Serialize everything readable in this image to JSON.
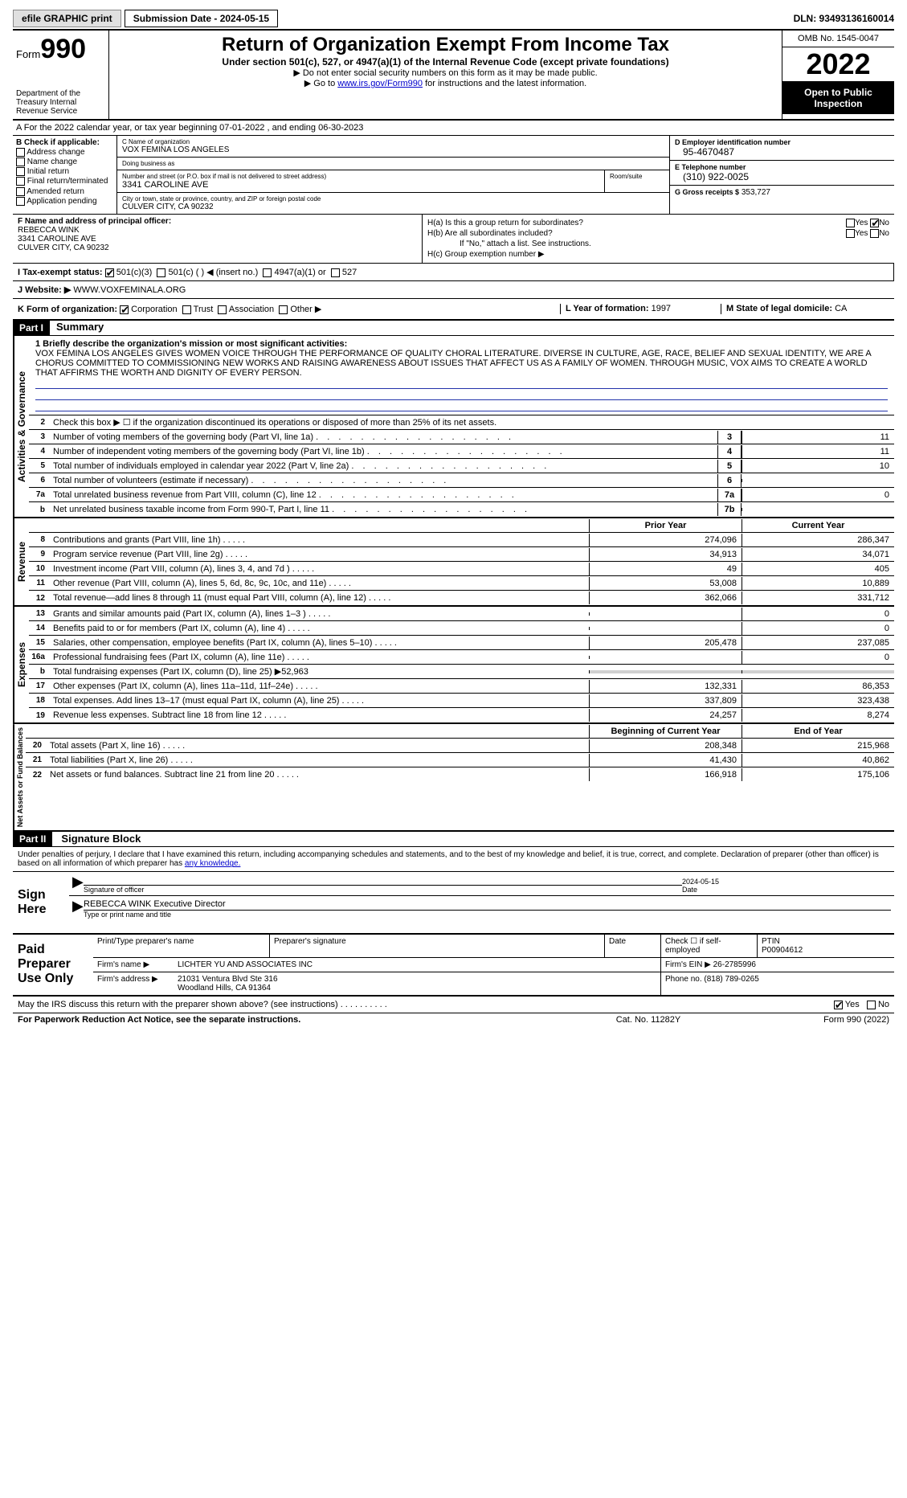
{
  "topbar": {
    "efile": "efile GRAPHIC print",
    "submission": "Submission Date - 2024-05-15",
    "dln": "DLN: 93493136160014"
  },
  "header": {
    "form_word": "Form",
    "form_num": "990",
    "dept": "Department of the Treasury Internal Revenue Service",
    "title": "Return of Organization Exempt From Income Tax",
    "sub1": "Under section 501(c), 527, or 4947(a)(1) of the Internal Revenue Code (except private foundations)",
    "sub2": "▶ Do not enter social security numbers on this form as it may be made public.",
    "sub3a": "▶ Go to ",
    "sub3_link": "www.irs.gov/Form990",
    "sub3b": " for instructions and the latest information.",
    "omb": "OMB No. 1545-0047",
    "year": "2022",
    "open": "Open to Public Inspection"
  },
  "row_a": "A For the 2022 calendar year, or tax year beginning 07-01-2022   , and ending 06-30-2023",
  "col_b": {
    "label": "B Check if applicable:",
    "items": [
      "Address change",
      "Name change",
      "Initial return",
      "Final return/terminated",
      "Amended return",
      "Application pending"
    ]
  },
  "col_c": {
    "name_label": "C Name of organization",
    "name": "VOX FEMINA LOS ANGELES",
    "dba_label": "Doing business as",
    "dba": "",
    "addr_label": "Number and street (or P.O. box if mail is not delivered to street address)",
    "addr": "3341 CAROLINE AVE",
    "room_label": "Room/suite",
    "city_label": "City or town, state or province, country, and ZIP or foreign postal code",
    "city": "CULVER CITY, CA  90232"
  },
  "col_d": {
    "ein_label": "D Employer identification number",
    "ein": "95-4670487",
    "tel_label": "E Telephone number",
    "tel": "(310) 922-0025",
    "gross_label": "G Gross receipts $",
    "gross": "353,727"
  },
  "col_f": {
    "label": "F Name and address of principal officer:",
    "name": "REBECCA WINK",
    "addr1": "3341 CAROLINE AVE",
    "addr2": "CULVER CITY, CA  90232"
  },
  "col_h": {
    "ha": "H(a)  Is this a group return for subordinates?",
    "hb": "H(b)  Are all subordinates included?",
    "hb_note": "If \"No,\" attach a list. See instructions.",
    "hc": "H(c)  Group exemption number ▶"
  },
  "row_i": {
    "label": "I  Tax-exempt status:",
    "opts": [
      "501(c)(3)",
      "501(c) (  ) ◀ (insert no.)",
      "4947(a)(1) or",
      "527"
    ]
  },
  "row_j": {
    "label": "J  Website: ▶",
    "val": " WWW.VOXFEMINALA.ORG"
  },
  "row_k": {
    "label": "K Form of organization:",
    "opts": [
      "Corporation",
      "Trust",
      "Association",
      "Other ▶"
    ],
    "year_label": "L Year of formation:",
    "year": "1997",
    "state_label": "M State of legal domicile:",
    "state": "CA"
  },
  "part1": {
    "hdr": "Part I",
    "title": "Summary",
    "side_ag": "Activities & Governance",
    "side_rev": "Revenue",
    "side_exp": "Expenses",
    "side_net": "Net Assets or Fund Balances",
    "l1_label": "1 Briefly describe the organization's mission or most significant activities:",
    "mission": "VOX FEMINA LOS ANGELES GIVES WOMEN VOICE THROUGH THE PERFORMANCE OF QUALITY CHORAL LITERATURE. DIVERSE IN CULTURE, AGE, RACE, BELIEF AND SEXUAL IDENTITY, WE ARE A CHORUS COMMITTED TO COMMISSIONING NEW WORKS AND RAISING AWARENESS ABOUT ISSUES THAT AFFECT US AS A FAMILY OF WOMEN. THROUGH MUSIC, VOX AIMS TO CREATE A WORLD THAT AFFIRMS THE WORTH AND DIGNITY OF EVERY PERSON.",
    "l2": "Check this box ▶ ☐  if the organization discontinued its operations or disposed of more than 25% of its net assets.",
    "lines_ag": [
      {
        "n": "3",
        "d": "Number of voting members of the governing body (Part VI, line 1a)",
        "b": "3",
        "v": "11"
      },
      {
        "n": "4",
        "d": "Number of independent voting members of the governing body (Part VI, line 1b)",
        "b": "4",
        "v": "11"
      },
      {
        "n": "5",
        "d": "Total number of individuals employed in calendar year 2022 (Part V, line 2a)",
        "b": "5",
        "v": "10"
      },
      {
        "n": "6",
        "d": "Total number of volunteers (estimate if necessary)",
        "b": "6",
        "v": ""
      },
      {
        "n": "7a",
        "d": "Total unrelated business revenue from Part VIII, column (C), line 12",
        "b": "7a",
        "v": "0"
      },
      {
        "n": "b",
        "d": "Net unrelated business taxable income from Form 990-T, Part I, line 11",
        "b": "7b",
        "v": ""
      }
    ],
    "col_hdr_prior": "Prior Year",
    "col_hdr_curr": "Current Year",
    "lines_rev": [
      {
        "n": "8",
        "d": "Contributions and grants (Part VIII, line 1h)",
        "p": "274,096",
        "c": "286,347"
      },
      {
        "n": "9",
        "d": "Program service revenue (Part VIII, line 2g)",
        "p": "34,913",
        "c": "34,071"
      },
      {
        "n": "10",
        "d": "Investment income (Part VIII, column (A), lines 3, 4, and 7d )",
        "p": "49",
        "c": "405"
      },
      {
        "n": "11",
        "d": "Other revenue (Part VIII, column (A), lines 5, 6d, 8c, 9c, 10c, and 11e)",
        "p": "53,008",
        "c": "10,889"
      },
      {
        "n": "12",
        "d": "Total revenue—add lines 8 through 11 (must equal Part VIII, column (A), line 12)",
        "p": "362,066",
        "c": "331,712"
      }
    ],
    "lines_exp": [
      {
        "n": "13",
        "d": "Grants and similar amounts paid (Part IX, column (A), lines 1–3 )",
        "p": "",
        "c": "0"
      },
      {
        "n": "14",
        "d": "Benefits paid to or for members (Part IX, column (A), line 4)",
        "p": "",
        "c": "0"
      },
      {
        "n": "15",
        "d": "Salaries, other compensation, employee benefits (Part IX, column (A), lines 5–10)",
        "p": "205,478",
        "c": "237,085"
      },
      {
        "n": "16a",
        "d": "Professional fundraising fees (Part IX, column (A), line 11e)",
        "p": "",
        "c": "0"
      },
      {
        "n": "b",
        "d": "Total fundraising expenses (Part IX, column (D), line 25) ▶52,963",
        "p": "",
        "c": "",
        "shaded": true
      },
      {
        "n": "17",
        "d": "Other expenses (Part IX, column (A), lines 11a–11d, 11f–24e)",
        "p": "132,331",
        "c": "86,353"
      },
      {
        "n": "18",
        "d": "Total expenses. Add lines 13–17 (must equal Part IX, column (A), line 25)",
        "p": "337,809",
        "c": "323,438"
      },
      {
        "n": "19",
        "d": "Revenue less expenses. Subtract line 18 from line 12",
        "p": "24,257",
        "c": "8,274"
      }
    ],
    "col_hdr_beg": "Beginning of Current Year",
    "col_hdr_end": "End of Year",
    "lines_net": [
      {
        "n": "20",
        "d": "Total assets (Part X, line 16)",
        "p": "208,348",
        "c": "215,968"
      },
      {
        "n": "21",
        "d": "Total liabilities (Part X, line 26)",
        "p": "41,430",
        "c": "40,862"
      },
      {
        "n": "22",
        "d": "Net assets or fund balances. Subtract line 21 from line 20",
        "p": "166,918",
        "c": "175,106"
      }
    ]
  },
  "part2": {
    "hdr": "Part II",
    "title": "Signature Block",
    "intro": "Under penalties of perjury, I declare that I have examined this return, including accompanying schedules and statements, and to the best of my knowledge and belief, it is true, correct, and complete. Declaration of preparer (other than officer) is based on all information of which preparer has ",
    "intro_link": "any knowledge.",
    "sign": "Sign Here",
    "sig_officer": "Signature of officer",
    "sig_date": "Date",
    "sig_date_val": "2024-05-15",
    "name_title": "REBECCA WINK  Executive Director",
    "name_title_label": "Type or print name and title",
    "paid": "Paid Preparer Use Only",
    "prep_hdrs": [
      "Print/Type preparer's name",
      "Preparer's signature",
      "Date",
      "Check ☐ if self-employed",
      "PTIN"
    ],
    "ptin": "P00904612",
    "firm_name_label": "Firm's name   ▶",
    "firm_name": "LICHTER YU AND ASSOCIATES INC",
    "firm_ein_label": "Firm's EIN ▶",
    "firm_ein": "26-2785996",
    "firm_addr_label": "Firm's address ▶",
    "firm_addr1": "21031 Ventura Blvd Ste 316",
    "firm_addr2": "Woodland Hills, CA  91364",
    "firm_phone_label": "Phone no.",
    "firm_phone": "(818) 789-0265",
    "discuss": "May the IRS discuss this return with the preparer shown above? (see instructions)",
    "yes": "Yes",
    "no": "No"
  },
  "footer": {
    "l": "For Paperwork Reduction Act Notice, see the separate instructions.",
    "m": "Cat. No. 11282Y",
    "r": "Form 990 (2022)"
  }
}
